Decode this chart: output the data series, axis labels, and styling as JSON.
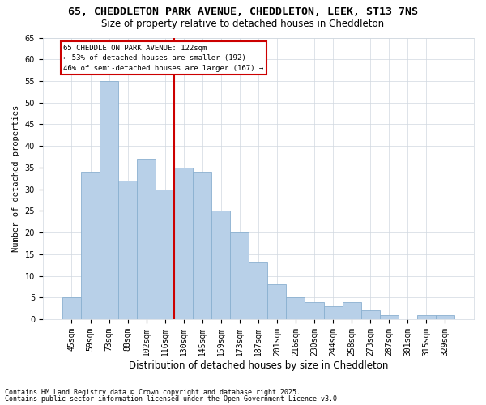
{
  "title": "65, CHEDDLETON PARK AVENUE, CHEDDLETON, LEEK, ST13 7NS",
  "subtitle": "Size of property relative to detached houses in Cheddleton",
  "xlabel": "Distribution of detached houses by size in Cheddleton",
  "ylabel": "Number of detached properties",
  "footnote1": "Contains HM Land Registry data © Crown copyright and database right 2025.",
  "footnote2": "Contains public sector information licensed under the Open Government Licence v3.0.",
  "annotation_title": "65 CHEDDLETON PARK AVENUE: 122sqm",
  "annotation_line1": "← 53% of detached houses are smaller (192)",
  "annotation_line2": "46% of semi-detached houses are larger (167) →",
  "subject_bin_index": 5,
  "categories": [
    "45sqm",
    "59sqm",
    "73sqm",
    "88sqm",
    "102sqm",
    "116sqm",
    "130sqm",
    "145sqm",
    "159sqm",
    "173sqm",
    "187sqm",
    "201sqm",
    "216sqm",
    "230sqm",
    "244sqm",
    "258sqm",
    "273sqm",
    "287sqm",
    "301sqm",
    "315sqm",
    "329sqm"
  ],
  "values": [
    5,
    34,
    55,
    32,
    37,
    30,
    35,
    34,
    25,
    20,
    13,
    8,
    5,
    4,
    3,
    4,
    2,
    1,
    0,
    1,
    1
  ],
  "bar_color": "#b8d0e8",
  "bar_edge_color": "#8ab0d0",
  "subject_line_color": "#cc0000",
  "ylim": [
    0,
    65
  ],
  "yticks": [
    0,
    5,
    10,
    15,
    20,
    25,
    30,
    35,
    40,
    45,
    50,
    55,
    60,
    65
  ],
  "background_color": "#ffffff",
  "grid_color": "#d0d8e0",
  "title_fontsize": 9.5,
  "subtitle_fontsize": 8.5,
  "ylabel_fontsize": 7.5,
  "xlabel_fontsize": 8.5,
  "tick_fontsize": 7,
  "annot_fontsize": 6.5,
  "footnote_fontsize": 6
}
